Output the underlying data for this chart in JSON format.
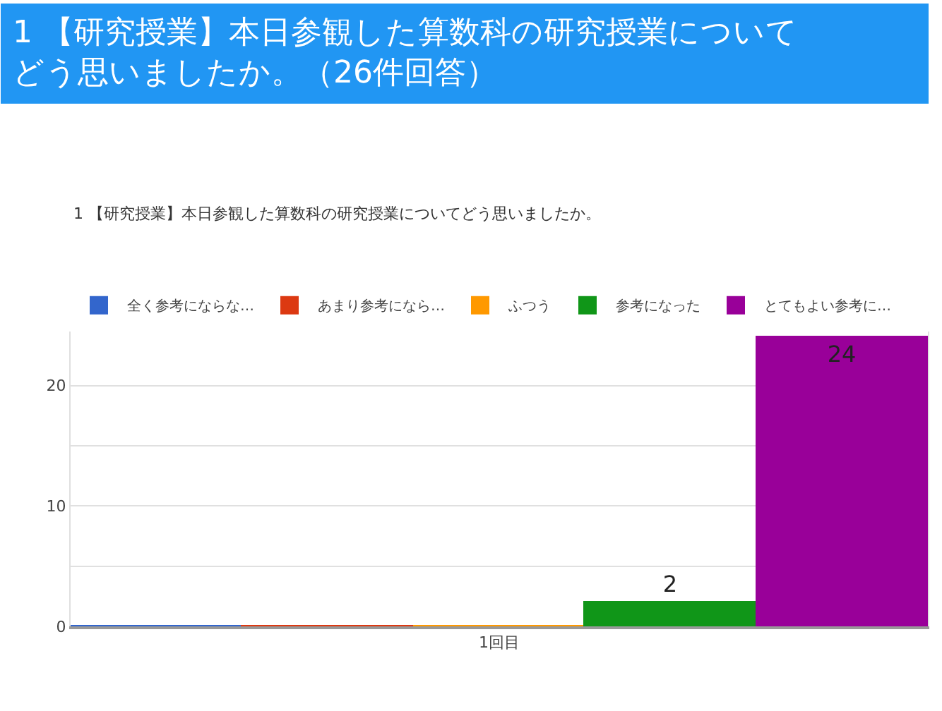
{
  "chart_data": {
    "type": "bar",
    "title": "1 【研究授業】本日参観した算数科の研究授業についてどう思いましたか。（26件回答）",
    "subtitle": "1 【研究授業】本日参観した算数科の研究授業についてどう思いましたか。",
    "categories": [
      "1回目"
    ],
    "series": [
      {
        "name": "全く参考にならな…",
        "color": "#3366cc",
        "values": [
          0
        ],
        "value_labels": [
          null
        ]
      },
      {
        "name": "あまり参考になら…",
        "color": "#dc3912",
        "values": [
          0
        ],
        "value_labels": [
          null
        ]
      },
      {
        "name": "ふつう",
        "color": "#ff9900",
        "values": [
          0
        ],
        "value_labels": [
          null
        ]
      },
      {
        "name": "参考になった",
        "color": "#109618",
        "values": [
          2
        ],
        "value_labels": [
          "2"
        ]
      },
      {
        "name": "とてもよい参考に…",
        "color": "#990099",
        "values": [
          24
        ],
        "value_labels": [
          "24"
        ]
      }
    ],
    "ylim": [
      0,
      24.5
    ],
    "yticks": [
      0,
      {
        "value": 5,
        "label": null
      },
      10,
      {
        "value": 15,
        "label": null
      },
      20
    ],
    "grid": "y",
    "legend": "top"
  }
}
